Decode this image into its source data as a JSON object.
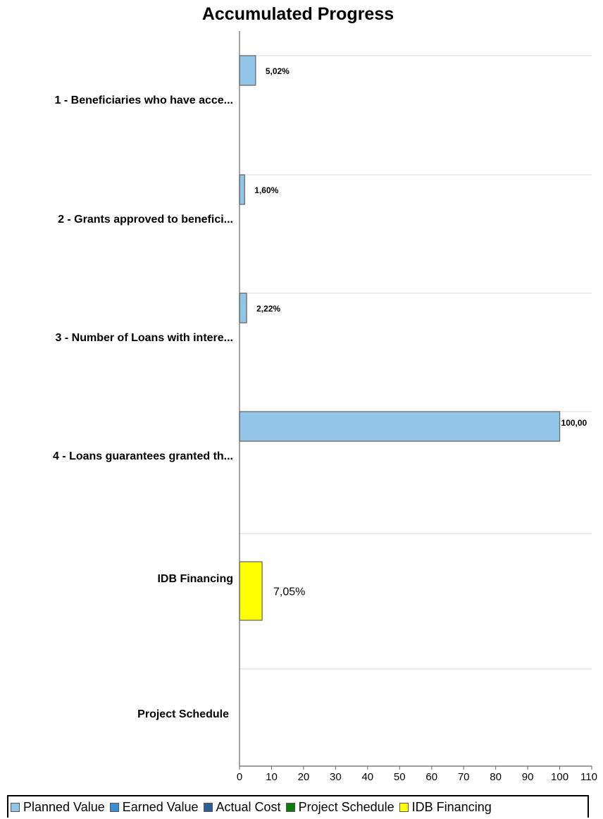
{
  "chart_data": {
    "type": "bar",
    "orientation": "horizontal",
    "title": "Accumulated Progress",
    "xlim": [
      0,
      110
    ],
    "xticks": [
      0,
      10,
      20,
      30,
      40,
      50,
      60,
      70,
      80,
      90,
      100,
      110
    ],
    "grid": "horizontal separators between categories",
    "legend_position": "bottom",
    "categories": [
      "1 - Beneficiaries who have acce...",
      "2 - Grants approved to benefici...",
      "3 - Number of Loans with intere...",
      "4 - Loans guarantees granted th...",
      "IDB Financing",
      "Project Schedule"
    ],
    "series": [
      {
        "name": "Planned Value",
        "color": "#92c5e8",
        "values": [
          5.02,
          1.6,
          2.22,
          100,
          null,
          null
        ],
        "labels": [
          "5,02%",
          "1,60%",
          "2,22%",
          "100,00",
          "",
          ""
        ]
      },
      {
        "name": "Earned Value",
        "color": "#3a8fd2",
        "values": [
          null,
          null,
          null,
          null,
          null,
          null
        ],
        "labels": [
          "",
          "",
          "",
          "",
          "",
          ""
        ]
      },
      {
        "name": "Actual Cost",
        "color": "#2b5f97",
        "values": [
          null,
          null,
          null,
          null,
          null,
          null
        ],
        "labels": [
          "",
          "",
          "",
          "",
          "",
          ""
        ]
      },
      {
        "name": "Project Schedule",
        "color": "#0b7d0b",
        "values": [
          null,
          null,
          null,
          null,
          null,
          null
        ],
        "labels": [
          "",
          "",
          "",
          "",
          "",
          ""
        ]
      },
      {
        "name": "IDB Financing",
        "color": "#ffff00",
        "values": [
          null,
          null,
          null,
          null,
          7.05,
          null
        ],
        "labels": [
          "",
          "",
          "",
          "",
          "7,05%",
          ""
        ]
      }
    ]
  }
}
